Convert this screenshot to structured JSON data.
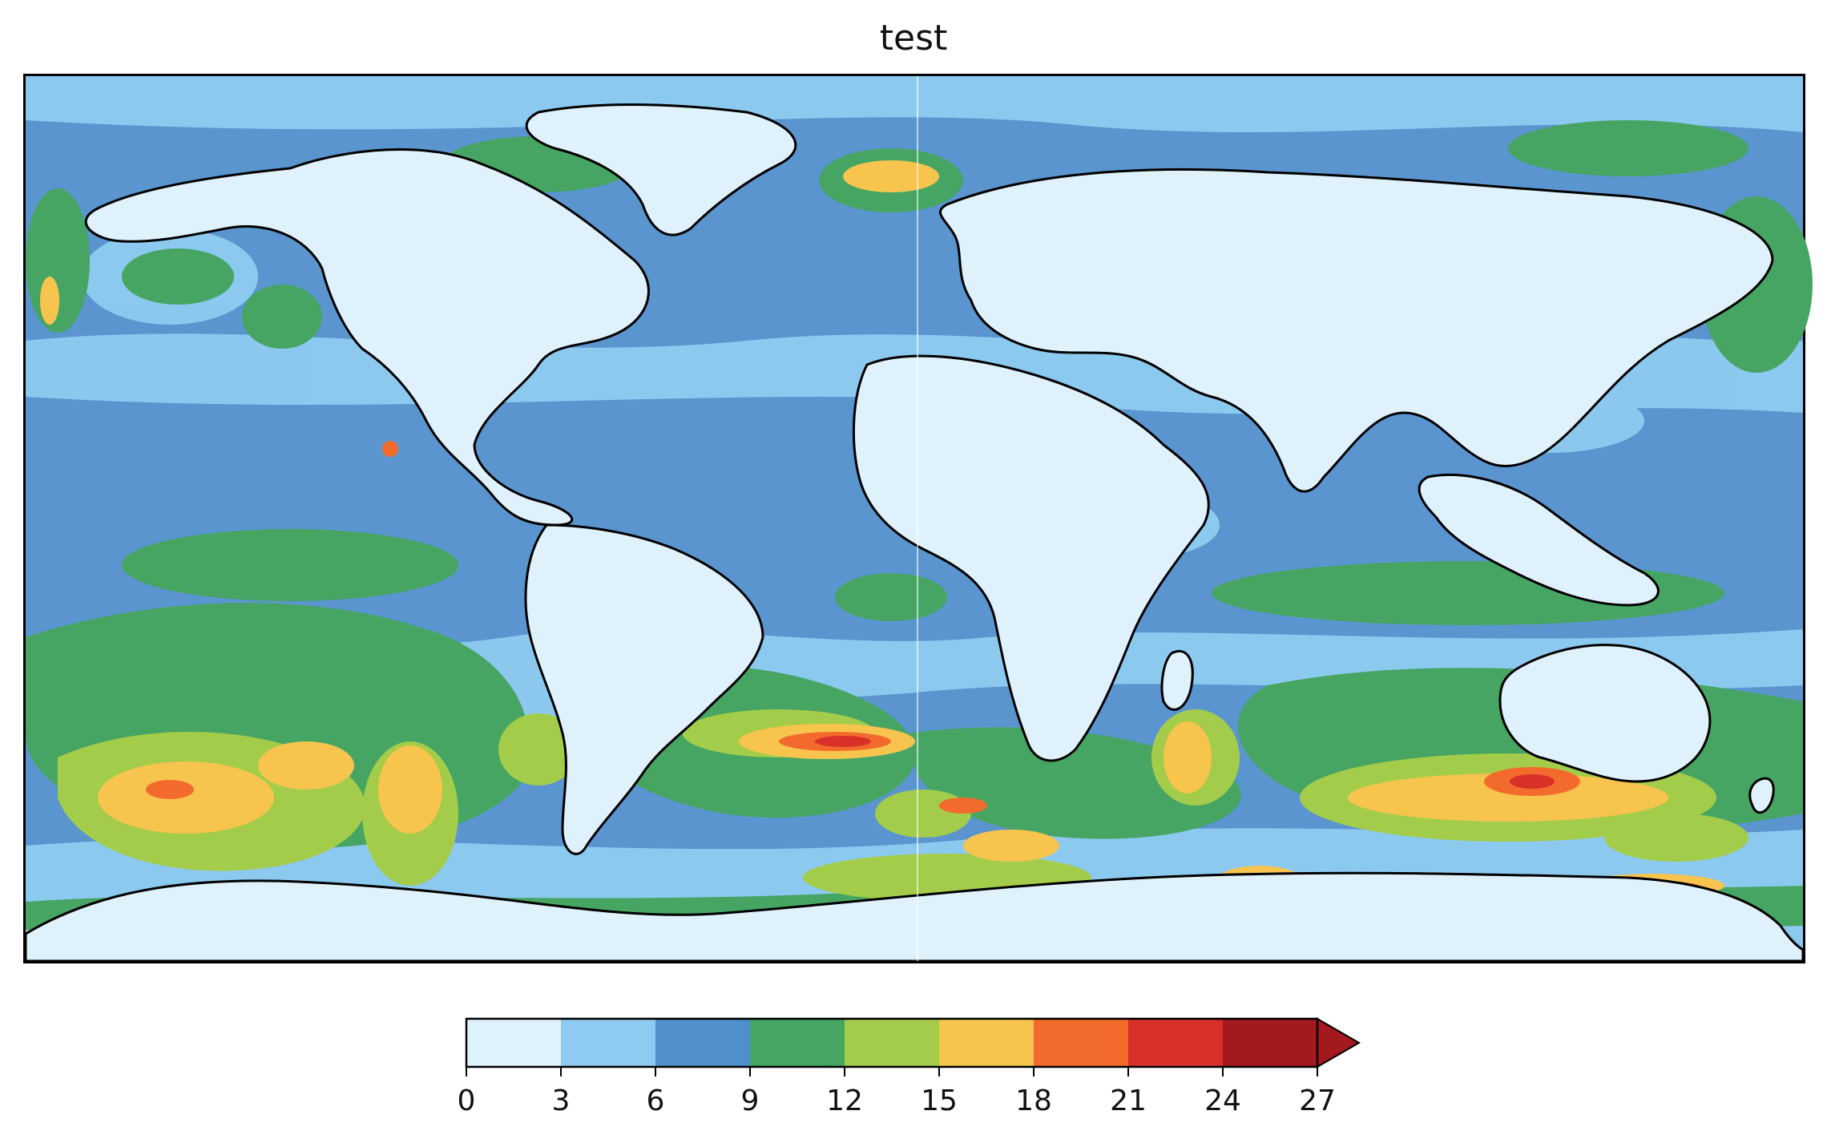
{
  "title": "test",
  "map": {
    "projection": "plate-carree",
    "field_levels": [
      0,
      3,
      6,
      9,
      12,
      15,
      18,
      21,
      24,
      27
    ]
  },
  "colorbar": {
    "orientation": "horizontal",
    "extend": "max",
    "ticks": [
      "0",
      "3",
      "6",
      "9",
      "12",
      "15",
      "18",
      "21",
      "24",
      "27"
    ],
    "colors": [
      "#dff1fb",
      "#8fcbf0",
      "#4f8fcc",
      "#46a563",
      "#a3cc4a",
      "#f7c44e",
      "#f26b2c",
      "#d9302a",
      "#a4191d"
    ],
    "extend_color": "#a4191d"
  }
}
